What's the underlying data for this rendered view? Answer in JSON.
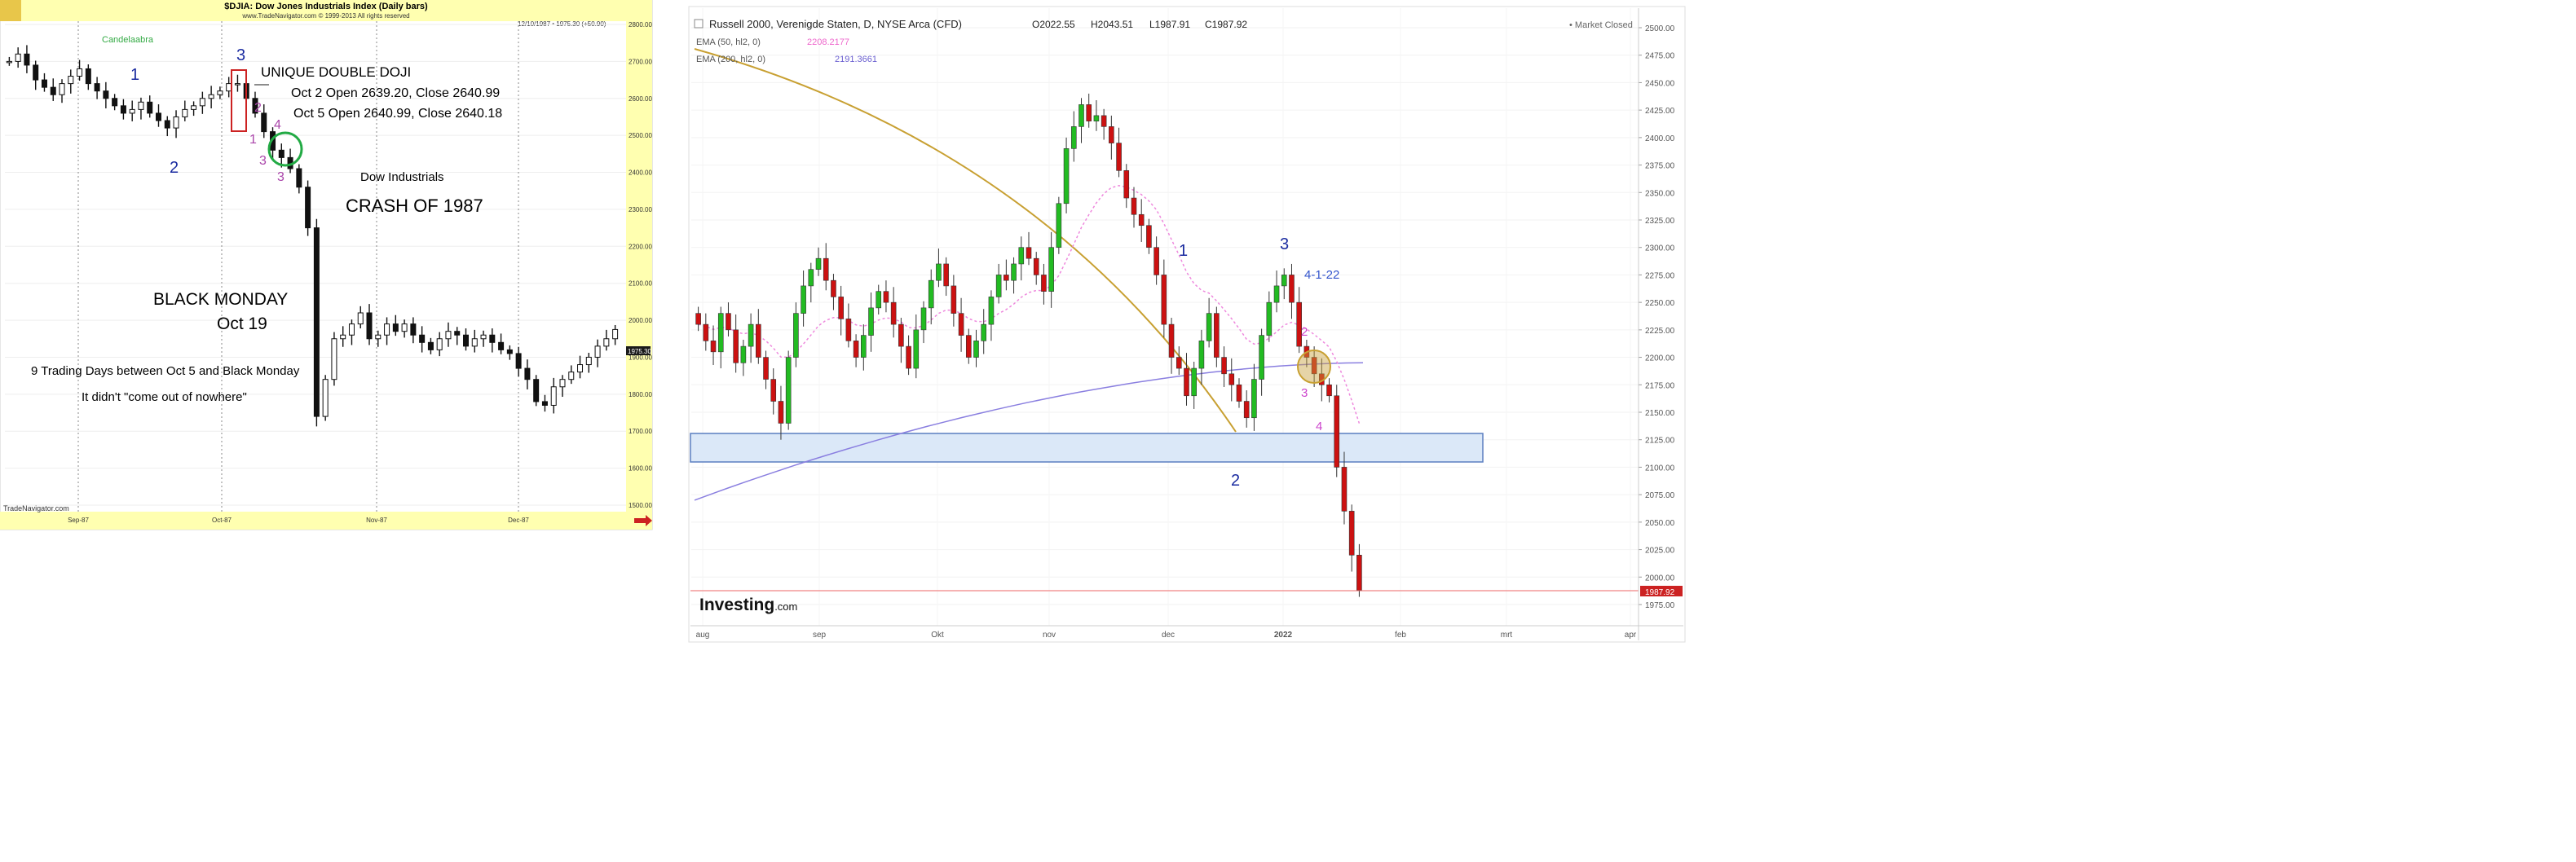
{
  "left_chart": {
    "header_title": "$DJIA:  Dow Jones Industrials Index  (Daily bars)",
    "header_sub": "www.TradeNavigator.com © 1999-2013 All rights reserved",
    "info_line": "12/10/1987 • 1975.30 (+50.90)",
    "candle_label": "Candelaabra",
    "annotations": {
      "unique_doji": "UNIQUE DOUBLE DOJI",
      "oct2": "Oct 2  Open 2639.20,  Close 2640.99",
      "oct5": "Oct 5 Open 2640.99, Close 2640.18",
      "dow_ind": "Dow Industrials",
      "crash": "CRASH OF 1987",
      "black_monday": "BLACK MONDAY",
      "oct19": "Oct 19",
      "nine_days": "9 Trading Days between Oct 5 and Black Monday",
      "nowhere": "It didn't \"come out of nowhere\"",
      "watermark": "TradeNavigator.com",
      "wave_1": "1",
      "wave_2": "2",
      "wave_3": "3",
      "sub_2": "2",
      "sub_3": "3",
      "sub_4": "4",
      "sub_1": "1",
      "sub_3b": "3"
    },
    "price_tag": "1975.30"
  },
  "right_chart": {
    "title": "Russell 2000, Verenigde Staten, D, NYSE Arca (CFD)",
    "ohlc": {
      "o": "O2022.55",
      "h": "H2043.51",
      "l": "L1987.91",
      "c": "C1987.92"
    },
    "market_status": "• Market Closed",
    "ema50": {
      "label": "EMA (50, hl2, 0)",
      "value": "2208.2177"
    },
    "ema200": {
      "label": "EMA (200, hl2, 0)",
      "value": "2191.3661"
    },
    "waves": {
      "w1": "1",
      "w2": "2",
      "w3": "3",
      "date": "4-1-22",
      "s2": "2",
      "s3": "3",
      "s4": "4"
    },
    "price_tag": "1987.92",
    "logo": "Investing",
    "logo_suffix": ".com"
  },
  "chart_data": [
    {
      "type": "bar",
      "title": "$DJIA:  Dow Jones Industrials Index  (Daily bars)",
      "x_ticks": [
        "Sep-87",
        "Oct-87",
        "Nov-87",
        "Dec-87"
      ],
      "y_ticks": [
        1500,
        1600,
        1700,
        1800,
        1900,
        2000,
        2100,
        2200,
        2300,
        2400,
        2500,
        2600,
        2700,
        2800
      ],
      "y_tick_labels": [
        "1500.00",
        "1600.00",
        "1700.00",
        "1800.00",
        "1900.00",
        "2000.00",
        "2100.00",
        "2200.00",
        "2300.00",
        "2400.00",
        "2500.00",
        "2600.00",
        "2700.00",
        "2800.00"
      ],
      "ylim": [
        1500,
        2800
      ],
      "closes": [
        2700,
        2720,
        2690,
        2650,
        2630,
        2610,
        2640,
        2660,
        2680,
        2640,
        2620,
        2600,
        2580,
        2560,
        2570,
        2590,
        2560,
        2540,
        2520,
        2550,
        2570,
        2580,
        2600,
        2610,
        2620,
        2640,
        2640,
        2600,
        2560,
        2510,
        2460,
        2440,
        2410,
        2360,
        2250,
        1740,
        1840,
        1950,
        1960,
        1990,
        2020,
        1950,
        1960,
        1990,
        1970,
        1990,
        1960,
        1940,
        1920,
        1950,
        1970,
        1960,
        1930,
        1950,
        1960,
        1940,
        1920,
        1910,
        1870,
        1840,
        1780,
        1770,
        1820,
        1840,
        1860,
        1880,
        1900,
        1930,
        1950,
        1975
      ],
      "last_value": 1975.3
    },
    {
      "type": "candlestick",
      "title": "Russell 2000, Verenigde Staten, D, NYSE Arca (CFD)",
      "x_ticks": [
        "aug",
        "sep",
        "Okt",
        "nov",
        "dec",
        "2022",
        "feb",
        "mrt",
        "apr"
      ],
      "y_ticks": [
        1975,
        2000,
        2025,
        2050,
        2075,
        2100,
        2125,
        2150,
        2175,
        2200,
        2225,
        2250,
        2275,
        2300,
        2325,
        2350,
        2375,
        2400,
        2425,
        2450,
        2475,
        2500
      ],
      "y_tick_labels": [
        "1975.00",
        "2000.00",
        "2025.00",
        "2050.00",
        "2075.00",
        "2100.00",
        "2125.00",
        "2150.00",
        "2175.00",
        "2200.00",
        "2225.00",
        "2250.00",
        "2275.00",
        "2300.00",
        "2325.00",
        "2350.00",
        "2375.00",
        "2400.00",
        "2425.00",
        "2450.00",
        "2475.00",
        "2500.00"
      ],
      "ylim": [
        1975,
        2500
      ],
      "closes": [
        2230,
        2215,
        2205,
        2240,
        2225,
        2195,
        2210,
        2230,
        2200,
        2180,
        2160,
        2140,
        2200,
        2240,
        2265,
        2280,
        2290,
        2270,
        2255,
        2235,
        2215,
        2200,
        2220,
        2245,
        2260,
        2250,
        2230,
        2210,
        2190,
        2225,
        2245,
        2270,
        2285,
        2265,
        2240,
        2220,
        2200,
        2215,
        2230,
        2255,
        2275,
        2270,
        2285,
        2300,
        2290,
        2275,
        2260,
        2300,
        2340,
        2390,
        2410,
        2430,
        2415,
        2420,
        2410,
        2395,
        2370,
        2345,
        2330,
        2320,
        2300,
        2275,
        2230,
        2200,
        2190,
        2165,
        2190,
        2215,
        2240,
        2200,
        2185,
        2175,
        2160,
        2145,
        2180,
        2220,
        2250,
        2265,
        2275,
        2250,
        2210,
        2200,
        2185,
        2175,
        2165,
        2100,
        2060,
        2020,
        1988
      ],
      "ema50_last": 2208.2177,
      "ema200_last": 2191.3661,
      "support_zone": [
        2105,
        2132
      ],
      "last_value": 1987.92
    }
  ]
}
